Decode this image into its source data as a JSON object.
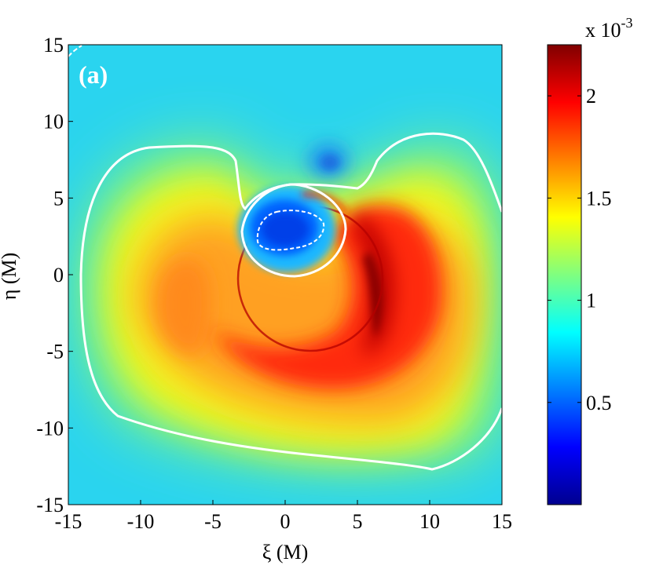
{
  "chart_data": {
    "type": "heatmap",
    "title": "",
    "panel_label": "(a)",
    "xlabel": "ξ (M)",
    "ylabel": "η (M)",
    "xlim": [
      -15,
      15
    ],
    "ylim": [
      -15,
      15
    ],
    "xticks": [
      -15,
      -10,
      -5,
      0,
      5,
      10,
      15
    ],
    "yticks": [
      -15,
      -10,
      -5,
      0,
      5,
      10,
      15
    ],
    "xtick_labels": [
      "-15",
      "-10",
      "-5",
      "0",
      "5",
      "10",
      "15"
    ],
    "ytick_labels": [
      "-15",
      "-10",
      "-5",
      "0",
      "5",
      "10",
      "15"
    ],
    "grid": false,
    "colormap": "jet",
    "colorbar": {
      "range": [
        0.0,
        0.00225
      ],
      "scale_label": "x 10",
      "scale_exponent": "-3",
      "ticks": [
        0.5,
        1,
        1.5,
        2
      ],
      "tick_labels": [
        "0.5",
        "1",
        "1.5",
        "2"
      ]
    },
    "features": [
      {
        "name": "background",
        "level": 0.00095
      },
      {
        "name": "inner-shadow-minimum",
        "center": [
          0.5,
          3.0
        ],
        "level": 0.00045
      },
      {
        "name": "upper-blue-blob",
        "center": [
          3.0,
          7.5
        ],
        "level": 0.00075
      },
      {
        "name": "maximum-ridge",
        "center": [
          8.0,
          -3.0
        ],
        "level": 0.00225
      },
      {
        "name": "left-lobe",
        "center": [
          -9.0,
          -1.0
        ],
        "level": 0.0017
      }
    ],
    "contours": [
      {
        "name": "outer-contour",
        "style": "solid",
        "color": "#ffffff"
      },
      {
        "name": "inner-edge-contour",
        "style": "solid",
        "color": "#ffffff"
      },
      {
        "name": "inner-minimum-contour",
        "style": "dashed",
        "color": "#ffffff"
      },
      {
        "name": "corner-contour",
        "style": "dashed",
        "color": "#ffffff"
      }
    ]
  }
}
